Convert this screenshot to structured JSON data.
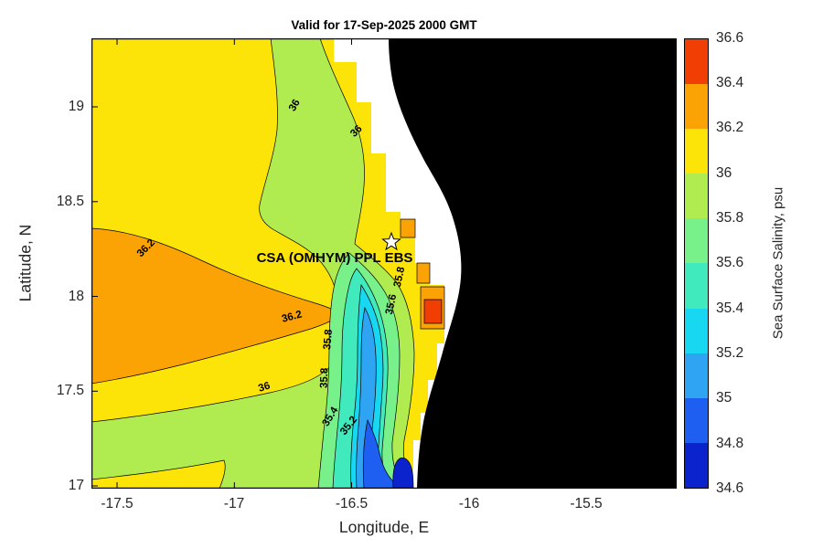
{
  "figure": {
    "title": "Valid for 17-Sep-2025 2000 GMT",
    "xlabel": "Longitude, E",
    "ylabel": "Latitude, N"
  },
  "axes": {
    "x_ticks": [
      "-17.5",
      "-17",
      "-16.5",
      "-16",
      "-15.5"
    ],
    "y_ticks": [
      "19",
      "18.5",
      "18",
      "17.5",
      "17"
    ]
  },
  "colorbar": {
    "label": "Sea Surface Salinity, psu",
    "tick_labels": [
      "36.6",
      "36.4",
      "36.2",
      "36",
      "35.8",
      "35.6",
      "35.4",
      "35.2",
      "35",
      "34.8",
      "34.6"
    ],
    "colors_top_to_bottom": [
      "#f03e05",
      "#fba304",
      "#fde408",
      "#b0ec4f",
      "#78f18b",
      "#40eabc",
      "#18d7f0",
      "#2fa4f2",
      "#1e5ef0",
      "#0b23cc"
    ]
  },
  "palette": {
    "c1": "#0b23cc",
    "c2": "#1e5ef0",
    "c3": "#2fa4f2",
    "c4": "#18d7f0",
    "c5": "#40eabc",
    "c6": "#78f18b",
    "c7": "#b0ec4f",
    "c8": "#fde408",
    "c9": "#fba304",
    "c10": "#f03e05",
    "land": "#000000",
    "nodata": "#ffffff"
  },
  "station": {
    "label": "CSA (OMHYM) PPL EBS",
    "marker": "star"
  },
  "contour_labels": [
    "36",
    "36",
    "36.2",
    "36.2",
    "36",
    "35.8",
    "35.8",
    "35.8",
    "35.6",
    "35.4",
    "35.2"
  ],
  "chart_data": {
    "type": "heatmap",
    "subtype": "filled-contour-map",
    "title": "Valid for 17-Sep-2025 2000 GMT",
    "xlabel": "Longitude, E",
    "ylabel": "Latitude, N",
    "xlim": [
      -17.6,
      -15.1
    ],
    "ylim": [
      16.97,
      19.35
    ],
    "x_ticks": [
      -17.5,
      -17,
      -16.5,
      -16,
      -15.5
    ],
    "y_ticks": [
      17,
      17.5,
      18,
      18.5,
      19
    ],
    "colorbar": {
      "label": "Sea Surface Salinity, psu",
      "min": 34.6,
      "max": 36.6,
      "step": 0.2
    },
    "labeled_contour_levels": [
      35.2,
      35.4,
      35.6,
      35.8,
      36,
      36.2
    ],
    "features": [
      {
        "name": "offshore-background",
        "range_psu": [
          36.0,
          36.2
        ],
        "note": "yellow field covering most of open ocean"
      },
      {
        "name": "high-salinity-tongue",
        "range_psu": [
          36.2,
          36.4
        ],
        "approx_lon": [
          -17.6,
          -16.2
        ],
        "approx_lat": [
          17.7,
          18.2
        ],
        "note": "orange tongue entering from western edge near 18N"
      },
      {
        "name": "upper-fresh-band",
        "range_psu": [
          35.8,
          36.0
        ],
        "approx_lon": [
          -16.9,
          -16.3
        ],
        "approx_lat": [
          18.3,
          19.35
        ],
        "note": "green band from top toward star location"
      },
      {
        "name": "lower-left-band",
        "range_psu": [
          35.8,
          36.0
        ],
        "approx_lon": [
          -17.6,
          -16.6
        ],
        "approx_lat": [
          17.0,
          17.5
        ],
        "note": "diagonal green band in lower left"
      },
      {
        "name": "coastal-low-salinity-plume",
        "min_psu": 34.6,
        "approx_lon": [
          -16.6,
          -16.3
        ],
        "approx_lat": [
          17.0,
          18.3
        ],
        "note": "nested bands 35.8 down to 34.6, freshest (dark blue) near 17.05N at coast"
      },
      {
        "name": "nearshore-salty-patches",
        "range_psu": [
          36.2,
          36.6
        ],
        "approx_lon": [
          -16.35,
          -16.2
        ],
        "approx_lat": [
          17.85,
          18.15
        ],
        "note": "orange/red cells at data edge near coast"
      },
      {
        "name": "land-mask",
        "note": "black region east of coastline (~-16.1 and east)"
      },
      {
        "name": "no-data-gap",
        "note": "white jagged band between gridded data and coastline"
      }
    ],
    "station": {
      "label": "CSA (OMHYM) PPL EBS",
      "lon": -16.33,
      "lat": 18.28,
      "marker": "star"
    }
  }
}
